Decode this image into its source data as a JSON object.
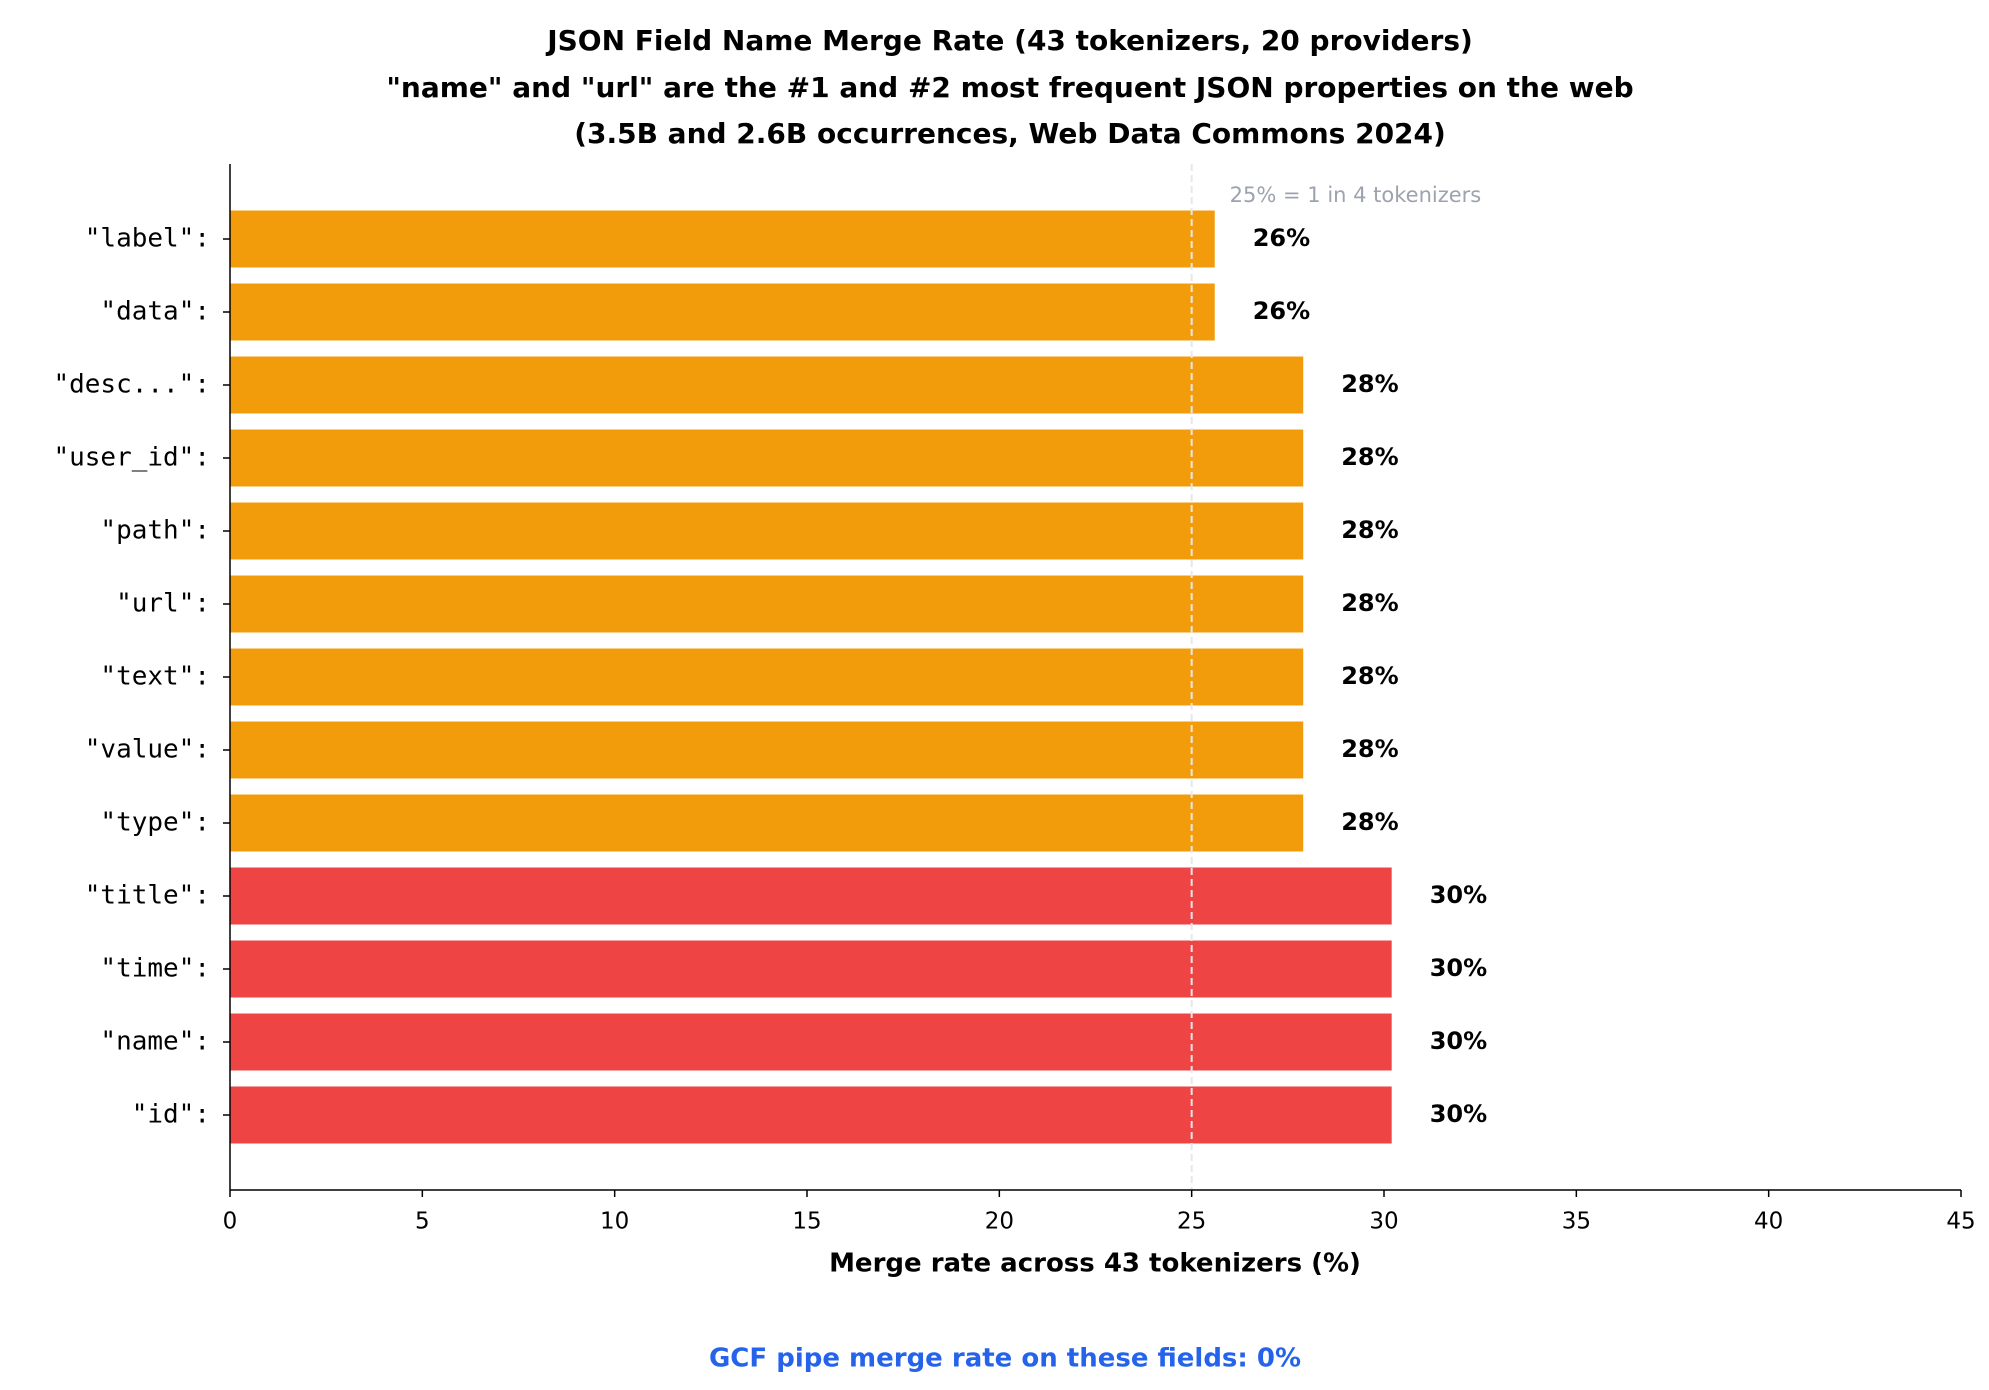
{
  "chart_data": {
    "type": "bar",
    "orientation": "horizontal",
    "title": [
      "JSON Field Name Merge Rate (43 tokenizers, 20 providers)",
      "\"name\" and \"url\" are the #1 and #2 most frequent JSON properties on the web",
      "(3.5B and 2.6B occurrences, Web Data Commons 2024)"
    ],
    "categories": [
      "\"label\":",
      "\"data\":",
      "\"desc...\":",
      "\"user_id\":",
      "\"path\":",
      "\"url\":",
      "\"text\":",
      "\"value\":",
      "\"type\":",
      "\"title\":",
      "\"time\":",
      "\"name\":",
      "\"id\":"
    ],
    "values": [
      25.6,
      25.6,
      27.9,
      27.9,
      27.9,
      27.9,
      27.9,
      27.9,
      27.9,
      30.2,
      30.2,
      30.2,
      30.2
    ],
    "value_labels": [
      "26%",
      "26%",
      "28%",
      "28%",
      "28%",
      "28%",
      "28%",
      "28%",
      "28%",
      "30%",
      "30%",
      "30%",
      "30%"
    ],
    "colors": [
      "#f39c0b",
      "#f39c0b",
      "#f39c0b",
      "#f39c0b",
      "#f39c0b",
      "#f39c0b",
      "#f39c0b",
      "#f39c0b",
      "#f39c0b",
      "#ef4444",
      "#ef4444",
      "#ef4444",
      "#ef4444"
    ],
    "xlim": [
      0,
      45
    ],
    "xticks": [
      0,
      5,
      10,
      15,
      20,
      25,
      30,
      35,
      40,
      45
    ],
    "xlabel": "Merge rate across 43 tokenizers (%)",
    "reference_line": {
      "value": 25,
      "label": "25% = 1 in 4 tokenizers"
    },
    "footnote": "GCF pipe merge rate on these fields: 0%"
  }
}
